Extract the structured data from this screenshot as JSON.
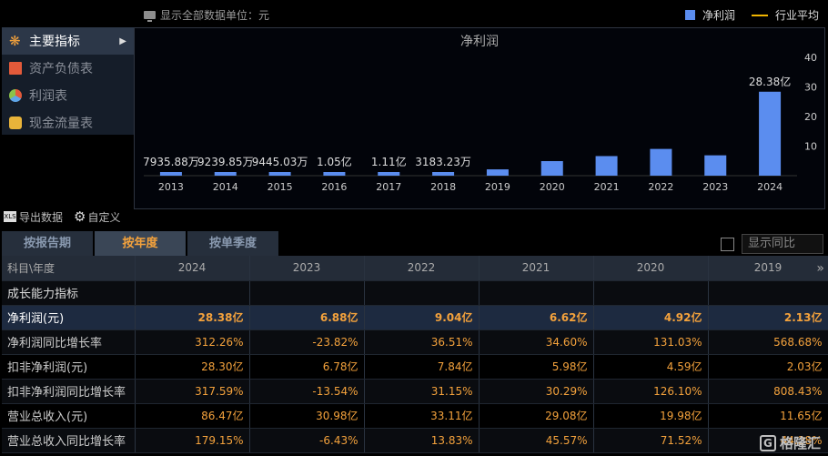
{
  "topbar": {
    "show_all": "显示全部数据",
    "unit": "单位：元",
    "legend_bar": "净利润",
    "legend_line": "行业平均"
  },
  "nav": {
    "items": [
      {
        "label": "主要指标",
        "icon": "star-icon",
        "active": true
      },
      {
        "label": "资产负债表",
        "icon": "document-icon",
        "active": false
      },
      {
        "label": "利润表",
        "icon": "pie-icon",
        "active": false
      },
      {
        "label": "现金流量表",
        "icon": "coin-icon",
        "active": false
      }
    ]
  },
  "chart_data": {
    "type": "bar",
    "title": "净利润",
    "categories": [
      "2013",
      "2014",
      "2015",
      "2016",
      "2017",
      "2018",
      "2019",
      "2020",
      "2021",
      "2022",
      "2023",
      "2024"
    ],
    "values_yi": [
      0.7936,
      0.924,
      0.9445,
      1.05,
      1.11,
      0.3183,
      2.13,
      4.92,
      6.62,
      9.04,
      6.88,
      28.38
    ],
    "data_labels": [
      "7935.88万",
      "9239.85万",
      "9445.03万",
      "1.05亿",
      "1.11亿",
      "3183.23万",
      "",
      "",
      "",
      "",
      "",
      "28.38亿"
    ],
    "ylim": [
      0,
      40
    ],
    "yticks": [
      10,
      20,
      30,
      40
    ],
    "bar_color": "#5b8def"
  },
  "tools": {
    "export": "导出数据",
    "custom": "自定义"
  },
  "tabs": [
    "按报告期",
    "按年度",
    "按单季度"
  ],
  "active_tab": 1,
  "yoy_label": "显示同比",
  "table": {
    "header_first": "科目\\年度",
    "years": [
      "2024",
      "2023",
      "2022",
      "2021",
      "2020",
      "2019"
    ],
    "rows": [
      {
        "label": "成长能力指标",
        "values": [
          "",
          "",
          "",
          "",
          "",
          ""
        ],
        "type": "section"
      },
      {
        "label": "净利润(元)",
        "values": [
          "28.38亿",
          "6.88亿",
          "9.04亿",
          "6.62亿",
          "4.92亿",
          "2.13亿"
        ],
        "type": "hl"
      },
      {
        "label": "净利润同比增长率",
        "values": [
          "312.26%",
          "-23.82%",
          "36.51%",
          "34.60%",
          "131.03%",
          "568.68%"
        ],
        "type": "normal"
      },
      {
        "label": "扣非净利润(元)",
        "values": [
          "28.30亿",
          "6.78亿",
          "7.84亿",
          "5.98亿",
          "4.59亿",
          "2.03亿"
        ],
        "type": "normal"
      },
      {
        "label": "扣非净利润同比增长率",
        "values": [
          "317.59%",
          "-13.54%",
          "31.15%",
          "30.29%",
          "126.10%",
          "808.43%"
        ],
        "type": "normal"
      },
      {
        "label": "营业总收入(元)",
        "values": [
          "86.47亿",
          "30.98亿",
          "33.11亿",
          "29.08亿",
          "19.98亿",
          "11.65亿"
        ],
        "type": "normal"
      },
      {
        "label": "营业总收入同比增长率",
        "values": [
          "179.15%",
          "-6.43%",
          "13.83%",
          "45.57%",
          "71.52%",
          "44.28%"
        ],
        "type": "normal"
      }
    ]
  },
  "watermark": "格隆汇"
}
